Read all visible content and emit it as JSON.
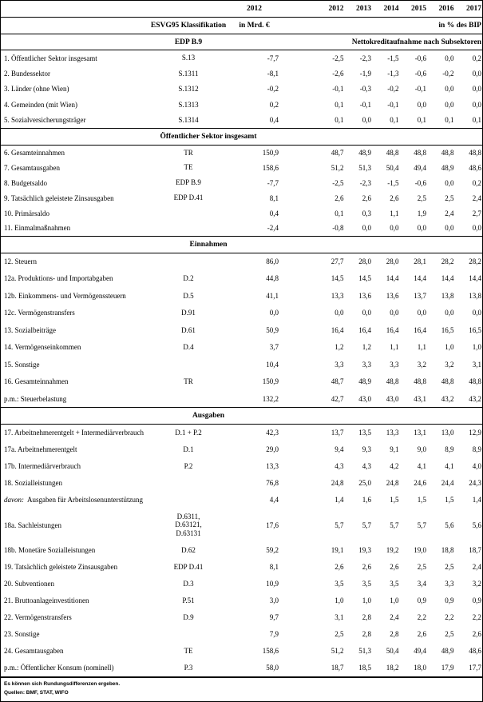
{
  "colors": {
    "text": "#000000",
    "border": "#000000",
    "background": "#ffffff"
  },
  "table": {
    "header": {
      "class_col_label": "ESVG95 Klassifikation",
      "mrd_col_label": "in Mrd. €",
      "pct_col_label": "in % des BIP",
      "mrd_year": "2012",
      "years": [
        "2012",
        "2013",
        "2014",
        "2015",
        "2016",
        "2017"
      ],
      "edp_label": "EDP B.9",
      "edp_note": "Nettokreditaufnahme nach Subsektoren"
    },
    "sections": [
      {
        "title": null,
        "rows": [
          {
            "label": "1. Öffentlicher Sektor insgesamt",
            "cls": "S.13",
            "mrd": "-7,7",
            "pct": [
              "-2,5",
              "-2,3",
              "-1,5",
              "-0,6",
              "0,0",
              "0,2"
            ]
          },
          {
            "label": "2. Bundessektor",
            "cls": "S.1311",
            "mrd": "-8,1",
            "pct": [
              "-2,6",
              "-1,9",
              "-1,3",
              "-0,6",
              "-0,2",
              "0,0"
            ]
          },
          {
            "label": "3. Länder (ohne Wien)",
            "cls": "S.1312",
            "mrd": "-0,2",
            "pct": [
              "-0,1",
              "-0,3",
              "-0,2",
              "-0,1",
              "0,0",
              "0,0"
            ]
          },
          {
            "label": "4. Gemeinden (mit Wien)",
            "cls": "S.1313",
            "mrd": "0,2",
            "pct": [
              "0,1",
              "-0,1",
              "-0,1",
              "0,0",
              "0,0",
              "0,0"
            ]
          },
          {
            "label": "5. Sozialversicherungsträger",
            "cls": "S.1314",
            "mrd": "0,4",
            "pct": [
              "0,1",
              "0,0",
              "0,1",
              "0,1",
              "0,1",
              "0,1"
            ]
          }
        ]
      },
      {
        "title": "Öffentlicher Sektor insgesamt",
        "rows": [
          {
            "label": "6. Gesamteinnahmen",
            "cls": "TR",
            "mrd": "150,9",
            "pct": [
              "48,7",
              "48,9",
              "48,8",
              "48,8",
              "48,8",
              "48,8"
            ]
          },
          {
            "label": "7. Gesamtausgaben",
            "cls": "TE",
            "mrd": "158,6",
            "pct": [
              "51,2",
              "51,3",
              "50,4",
              "49,4",
              "48,9",
              "48,6"
            ]
          },
          {
            "label": "8. Budgetsaldo",
            "cls": "EDP B.9",
            "mrd": "-7,7",
            "pct": [
              "-2,5",
              "-2,3",
              "-1,5",
              "-0,6",
              "0,0",
              "0,2"
            ]
          },
          {
            "label": "9. Tatsächlich geleistete Zinsausgaben",
            "cls": "EDP D.41",
            "mrd": "8,1",
            "pct": [
              "2,6",
              "2,6",
              "2,6",
              "2,5",
              "2,5",
              "2,4"
            ]
          },
          {
            "label": "10. Primärsaldo",
            "cls": "",
            "mrd": "0,4",
            "pct": [
              "0,1",
              "0,3",
              "1,1",
              "1,9",
              "2,4",
              "2,7"
            ]
          },
          {
            "label": "11. Einmalmaßnahmen",
            "cls": "",
            "mrd": "-2,4",
            "pct": [
              "-0,8",
              "0,0",
              "0,0",
              "0,0",
              "0,0",
              "0,0"
            ]
          }
        ]
      },
      {
        "title": "Einnahmen",
        "rows": [
          {
            "label": "12. Steuern",
            "cls": "",
            "mrd": "86,0",
            "pct": [
              "27,7",
              "28,0",
              "28,0",
              "28,1",
              "28,2",
              "28,2"
            ]
          },
          {
            "label": "12a. Produktions- und Importabgaben",
            "cls": "D.2",
            "mrd": "44,8",
            "pct": [
              "14,5",
              "14,5",
              "14,4",
              "14,4",
              "14,4",
              "14,4"
            ]
          },
          {
            "label": "12b. Einkommens- und Vermögenssteuern",
            "cls": "D.5",
            "mrd": "41,1",
            "pct": [
              "13,3",
              "13,6",
              "13,6",
              "13,7",
              "13,8",
              "13,8"
            ]
          },
          {
            "label": "12c. Vermögenstransfers",
            "cls": "D.91",
            "mrd": "0,0",
            "pct": [
              "0,0",
              "0,0",
              "0,0",
              "0,0",
              "0,0",
              "0,0"
            ]
          },
          {
            "label": "13. Sozialbeiträge",
            "cls": "D.61",
            "mrd": "50,9",
            "pct": [
              "16,4",
              "16,4",
              "16,4",
              "16,4",
              "16,5",
              "16,5"
            ]
          },
          {
            "label": "14. Vermögenseinkommen",
            "cls": "D.4",
            "mrd": "3,7",
            "pct": [
              "1,2",
              "1,2",
              "1,1",
              "1,1",
              "1,0",
              "1,0"
            ]
          },
          {
            "label": "15. Sonstige",
            "cls": "",
            "mrd": "10,4",
            "pct": [
              "3,3",
              "3,3",
              "3,3",
              "3,2",
              "3,2",
              "3,1"
            ]
          },
          {
            "label": "16. Gesamteinnahmen",
            "cls": "TR",
            "mrd": "150,9",
            "pct": [
              "48,7",
              "48,9",
              "48,8",
              "48,8",
              "48,8",
              "48,8"
            ]
          },
          {
            "label": "p.m.: Steuerbelastung",
            "cls": "",
            "mrd": "132,2",
            "pct": [
              "42,7",
              "43,0",
              "43,0",
              "43,1",
              "43,2",
              "43,2"
            ]
          }
        ]
      },
      {
        "title": "Ausgaben",
        "rows": [
          {
            "label": "17. Arbeitnehmerentgelt + Intermediärverbrauch",
            "cls": "D.1 + P.2",
            "mrd": "42,3",
            "pct": [
              "13,7",
              "13,5",
              "13,3",
              "13,1",
              "13,0",
              "12,9"
            ]
          },
          {
            "label": "17a. Arbeitnehmerentgelt",
            "cls": "D.1",
            "mrd": "29,0",
            "pct": [
              "9,4",
              "9,3",
              "9,1",
              "9,0",
              "8,9",
              "8,9"
            ]
          },
          {
            "label": "17b. Intermediärverbrauch",
            "cls": "P.2",
            "mrd": "13,3",
            "pct": [
              "4,3",
              "4,3",
              "4,2",
              "4,1",
              "4,1",
              "4,0"
            ]
          },
          {
            "label": "18. Sozialleistungen",
            "cls": "",
            "mrd": "76,8",
            "pct": [
              "24,8",
              "25,0",
              "24,8",
              "24,6",
              "24,4",
              "24,3"
            ]
          },
          {
            "prefix": "davon:",
            "label": "Ausgaben für Arbeitslosenunterstützung",
            "cls": "",
            "mrd": "4,4",
            "pct": [
              "1,4",
              "1,6",
              "1,5",
              "1,5",
              "1,5",
              "1,4"
            ]
          },
          {
            "label": "18a. Sachleistungen",
            "cls": "D.6311,\nD.63121,\nD.63131",
            "tall": true,
            "mrd": "17,6",
            "pct": [
              "5,7",
              "5,7",
              "5,7",
              "5,7",
              "5,6",
              "5,6"
            ]
          },
          {
            "label": "18b. Monetäre Sozialleistungen",
            "cls": "D.62",
            "mrd": "59,2",
            "pct": [
              "19,1",
              "19,3",
              "19,2",
              "19,0",
              "18,8",
              "18,7"
            ]
          },
          {
            "label": "19. Tatsächlich geleistete Zinsausgaben",
            "cls": "EDP D.41",
            "mrd": "8,1",
            "pct": [
              "2,6",
              "2,6",
              "2,6",
              "2,5",
              "2,5",
              "2,4"
            ]
          },
          {
            "label": "20. Subventionen",
            "cls": "D.3",
            "mrd": "10,9",
            "pct": [
              "3,5",
              "3,5",
              "3,5",
              "3,4",
              "3,3",
              "3,2"
            ]
          },
          {
            "label": "21. Bruttoanlageinvestitionen",
            "cls": "P.51",
            "mrd": "3,0",
            "pct": [
              "1,0",
              "1,0",
              "1,0",
              "0,9",
              "0,9",
              "0,9"
            ]
          },
          {
            "label": "22. Vermögenstransfers",
            "cls": "D.9",
            "mrd": "9,7",
            "pct": [
              "3,1",
              "2,8",
              "2,4",
              "2,2",
              "2,2",
              "2,2"
            ]
          },
          {
            "label": "23. Sonstige",
            "cls": "",
            "mrd": "7,9",
            "pct": [
              "2,5",
              "2,8",
              "2,8",
              "2,6",
              "2,5",
              "2,6"
            ]
          },
          {
            "label": "24. Gesamtausgaben",
            "cls": "TE",
            "mrd": "158,6",
            "pct": [
              "51,2",
              "51,3",
              "50,4",
              "49,4",
              "48,9",
              "48,6"
            ]
          },
          {
            "label": "p.m.: Öffentlicher Konsum (nominell)",
            "cls": "P.3",
            "mrd": "58,0",
            "pct": [
              "18,7",
              "18,5",
              "18,2",
              "18,0",
              "17,9",
              "17,7"
            ]
          }
        ]
      }
    ],
    "footnotes": [
      "Es können sich Rundungsdifferenzen ergeben.",
      "Quellen: BMF, STAT, WIFO"
    ]
  }
}
